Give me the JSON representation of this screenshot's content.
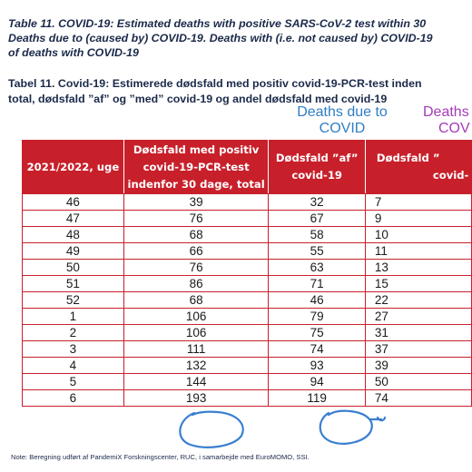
{
  "title_en": [
    "Table 11. COVID-19: Estimated deaths with positive SARS-CoV-2 test within 30",
    "Deaths due to (caused by) COVID-19. Deaths with (i.e. not caused by) COVID-19",
    "of deaths with COVID-19"
  ],
  "title_da": [
    "Tabel 11. Covid-19: Estimerede dødsfald med positiv covid-19-PCR-test inden",
    "total, dødsfald ”af” og ”med” covid-19 og andel dødsfald med covid-19"
  ],
  "annotations": {
    "blue": [
      "Deaths due to",
      "COVID"
    ],
    "purple": [
      "Deaths",
      "COV"
    ],
    "blue_color": "#2f7fc4",
    "purple_color": "#a33bb8",
    "circle_color": "#3a7fd0"
  },
  "table": {
    "header_color": "#c8202b",
    "headers": [
      [
        "2021/2022, uge"
      ],
      [
        "Dødsfald med positiv",
        "covid-19-PCR-test",
        "indenfor 30 dage, total"
      ],
      [
        "Dødsfald ”af”",
        "covid-19"
      ],
      [
        "Dødsfald ”",
        "covid-"
      ]
    ],
    "rows": [
      [
        "46",
        "39",
        "32",
        "7"
      ],
      [
        "47",
        "76",
        "67",
        "9"
      ],
      [
        "48",
        "68",
        "58",
        "10"
      ],
      [
        "49",
        "66",
        "55",
        "11"
      ],
      [
        "50",
        "76",
        "63",
        "13"
      ],
      [
        "51",
        "86",
        "71",
        "15"
      ],
      [
        "52",
        "68",
        "46",
        "22"
      ],
      [
        "1",
        "106",
        "79",
        "27"
      ],
      [
        "2",
        "106",
        "75",
        "31"
      ],
      [
        "3",
        "111",
        "74",
        "37"
      ],
      [
        "4",
        "132",
        "93",
        "39"
      ],
      [
        "5",
        "144",
        "94",
        "50"
      ],
      [
        "6",
        "193",
        "119",
        "74"
      ]
    ]
  },
  "note": "Note: Beregning udført af PandemiX Forskningscenter, RUC, i samarbejde med EuroMOMO, SSI."
}
